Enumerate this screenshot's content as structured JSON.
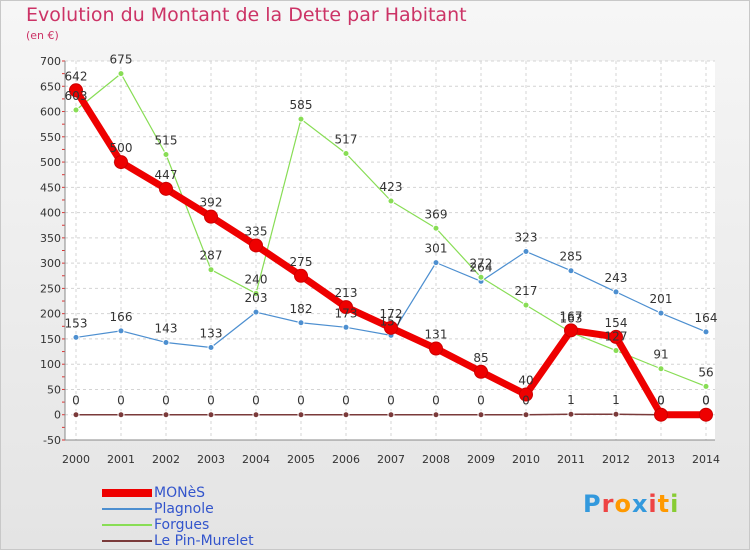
{
  "chart_data": {
    "type": "line",
    "title": "Evolution du Montant de la Dette par Habitant",
    "unit_label": "(en €)",
    "x": [
      "2000",
      "2001",
      "2002",
      "2003",
      "2004",
      "2005",
      "2006",
      "2007",
      "2008",
      "2009",
      "2010",
      "2011",
      "2012",
      "2013",
      "2014"
    ],
    "ylim": [
      -50,
      700
    ],
    "y_ticks": [
      "-50",
      "0",
      "50",
      "100",
      "150",
      "200",
      "250",
      "300",
      "350",
      "400",
      "450",
      "500",
      "550",
      "600",
      "650",
      "700"
    ],
    "grid": true,
    "legend_position": "bottom-left",
    "series": [
      {
        "name": "MONèS",
        "color": "#ee0000",
        "values": [
          642,
          500,
          447,
          392,
          335,
          275,
          213,
          172,
          131,
          85,
          40,
          167,
          154,
          0,
          0
        ],
        "labels": [
          "642",
          "500",
          "447",
          "392",
          "335",
          "275",
          "213",
          "172",
          "131",
          "85",
          "40",
          "167",
          "154",
          "0",
          "0"
        ]
      },
      {
        "name": "Plagnole",
        "color": "#4d8fd0",
        "values": [
          153,
          166,
          143,
          133,
          203,
          182,
          173,
          157,
          301,
          264,
          323,
          285,
          243,
          201,
          164
        ],
        "labels": [
          "153",
          "166",
          "143",
          "133",
          "203",
          "182",
          "173",
          "157",
          "301",
          "264",
          "323",
          "285",
          "243",
          "201",
          "164"
        ]
      },
      {
        "name": "Forgues",
        "color": "#88dd55",
        "values": [
          603,
          675,
          515,
          287,
          240,
          585,
          517,
          423,
          369,
          272,
          217,
          163,
          127,
          91,
          56
        ],
        "labels": [
          "603",
          "675",
          "515",
          "287",
          "240",
          "585",
          "517",
          "423",
          "369",
          "272",
          "217",
          "163",
          "127",
          "91",
          "56"
        ]
      },
      {
        "name": "Le Pin-Murelet",
        "color": "#7a3a3a",
        "values": [
          0,
          0,
          0,
          0,
          0,
          0,
          0,
          0,
          0,
          0,
          0,
          1,
          1,
          0,
          0
        ],
        "labels": [
          "0",
          "0",
          "0",
          "0",
          "0",
          "0",
          "0",
          "0",
          "0",
          "0",
          "0",
          "1",
          "1",
          "0",
          "0"
        ]
      }
    ]
  },
  "legend": {
    "items": [
      {
        "label": "MONèS",
        "color": "#ee0000"
      },
      {
        "label": "Plagnole",
        "color": "#4d8fd0"
      },
      {
        "label": "Forgues",
        "color": "#88dd55"
      },
      {
        "label": "Le Pin-Murelet",
        "color": "#7a3a3a"
      }
    ]
  },
  "logo": {
    "text": "Proxiti",
    "colors": [
      "#3399dd",
      "#ee4444",
      "#ff9900",
      "#3399dd",
      "#ee4444",
      "#ff9900",
      "#88cc33"
    ]
  }
}
